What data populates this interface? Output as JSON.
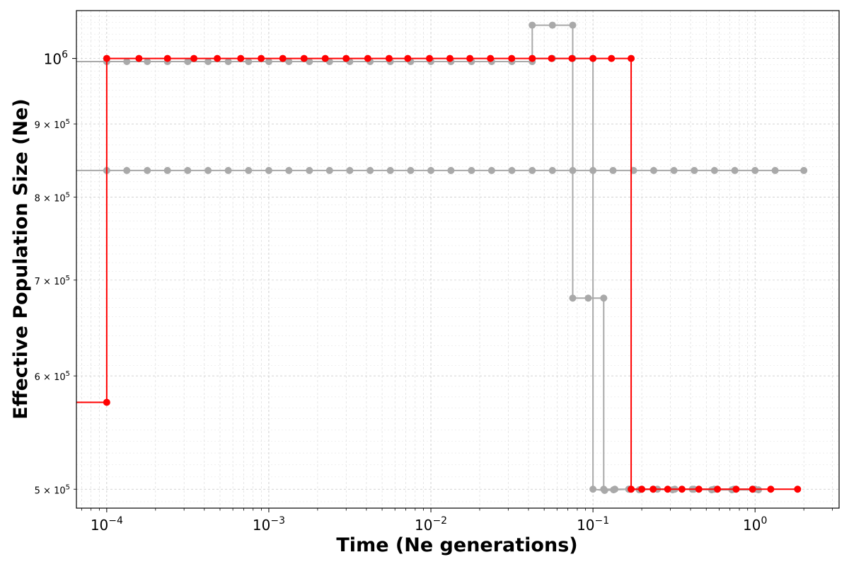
{
  "chart_data": {
    "type": "line",
    "title": "",
    "xlabel": "Time (Ne generations)",
    "ylabel": "Effective Population Size (Ne)",
    "xscale": "log",
    "yscale": "log",
    "xlim": [
      6.5e-05,
      3.3
    ],
    "ylim": [
      485000,
      1080000
    ],
    "grid": true,
    "legend": null,
    "colors": {
      "gray": "#a9a9a9",
      "red": "#ff0000"
    },
    "x_major_ticks": [
      {
        "value": 0.0001,
        "mantissa": "10",
        "exp": "−4"
      },
      {
        "value": 0.001,
        "mantissa": "10",
        "exp": "−3"
      },
      {
        "value": 0.01,
        "mantissa": "10",
        "exp": "−2"
      },
      {
        "value": 0.1,
        "mantissa": "10",
        "exp": "−1"
      },
      {
        "value": 1,
        "mantissa": "10",
        "exp": "0"
      }
    ],
    "y_ticks": [
      {
        "value": 1000000,
        "mantissa": "10",
        "exp": "6",
        "major": true
      },
      {
        "value": 900000,
        "mantissa": "9 × 10",
        "exp": "5",
        "major": false
      },
      {
        "value": 800000,
        "mantissa": "8 × 10",
        "exp": "5",
        "major": false
      },
      {
        "value": 700000,
        "mantissa": "7 × 10",
        "exp": "5",
        "major": false
      },
      {
        "value": 600000,
        "mantissa": "6 × 10",
        "exp": "5",
        "major": false
      },
      {
        "value": 500000,
        "mantissa": "5 × 10",
        "exp": "5",
        "major": false
      }
    ],
    "series": [
      {
        "color": "gray",
        "x": [
          0.0001,
          0.000133,
          0.000178,
          0.000237,
          0.000316,
          0.000422,
          0.000562,
          0.00075,
          0.001,
          0.00133,
          0.00178,
          0.00237,
          0.00316,
          0.00422,
          0.00562,
          0.0075,
          0.01,
          0.0133,
          0.0178,
          0.0237,
          0.0316,
          0.0422,
          0.0562,
          0.075,
          0.1,
          0.133,
          0.178,
          0.237,
          0.316,
          0.422,
          0.562,
          0.75,
          1.0,
          1.33,
          2.0
        ],
        "values": [
          835000,
          835000,
          835000,
          835000,
          835000,
          835000,
          835000,
          835000,
          835000,
          835000,
          835000,
          835000,
          835000,
          835000,
          835000,
          835000,
          835000,
          835000,
          835000,
          835000,
          835000,
          835000,
          835000,
          835000,
          835000,
          835000,
          835000,
          835000,
          835000,
          835000,
          835000,
          835000,
          835000,
          835000,
          835000
        ],
        "lead_in": true
      },
      {
        "color": "gray",
        "x": [
          0.0001,
          0.000133,
          0.000178,
          0.000237,
          0.000316,
          0.000422,
          0.000562,
          0.00075,
          0.001,
          0.00133,
          0.00178,
          0.00237,
          0.00316,
          0.00422,
          0.00562,
          0.0075,
          0.01,
          0.0133,
          0.0178,
          0.0237,
          0.0316,
          0.0422,
          0.0422,
          0.0562,
          0.075,
          0.075,
          0.0935,
          0.1165,
          0.1165,
          0.1365,
          0.1685,
          0.2,
          0.25,
          0.32,
          0.42,
          0.56,
          0.74,
          1.0
        ],
        "values": [
          995000,
          995000,
          995000,
          995000,
          995000,
          995000,
          995000,
          995000,
          995000,
          995000,
          995000,
          995000,
          995000,
          995000,
          995000,
          995000,
          995000,
          995000,
          995000,
          995000,
          995000,
          995000,
          1055000,
          1055000,
          1055000,
          680000,
          680000,
          680000,
          500000,
          500000,
          500000,
          500000,
          500000,
          500000,
          500000,
          500000,
          500000,
          500000
        ],
        "lead_in": true
      },
      {
        "color": "gray",
        "x": [
          0.0422,
          0.0562,
          0.075,
          0.1,
          0.1,
          0.118,
          0.134,
          0.166,
          0.193,
          0.236,
          0.31,
          0.41,
          0.54,
          0.72,
          1.05
        ],
        "values": [
          1000000,
          1000000,
          1000000,
          1000000,
          500000,
          499000,
          499500,
          500000,
          499500,
          500000,
          499500,
          500000,
          499500,
          499500,
          499500
        ],
        "lead_in": false
      },
      {
        "color": "red",
        "x": [
          0.0001,
          0.0001,
          0.000158,
          0.000237,
          0.000345,
          0.000481,
          0.000671,
          0.000897,
          0.00122,
          0.00165,
          0.00223,
          0.003,
          0.00408,
          0.00552,
          0.0072,
          0.0098,
          0.0131,
          0.0174,
          0.0233,
          0.0315,
          0.0422,
          0.0555,
          0.0742,
          0.1,
          0.13,
          0.172,
          0.172,
          0.2,
          0.235,
          0.289,
          0.354,
          0.45,
          0.586,
          0.764,
          0.965,
          1.25,
          1.83
        ],
        "values": [
          575000,
          1000000,
          1000000,
          1000000,
          1000000,
          1000000,
          1000000,
          1000000,
          1000000,
          1000000,
          1000000,
          1000000,
          1000000,
          1000000,
          1000000,
          1000000,
          1000000,
          1000000,
          1000000,
          1000000,
          1000000,
          1000000,
          1000000,
          1000000,
          1000000,
          1000000,
          500000,
          500000,
          500000,
          500000,
          500000,
          500000,
          500000,
          500000,
          500000,
          500000,
          500000
        ],
        "lead_in": true
      }
    ]
  }
}
